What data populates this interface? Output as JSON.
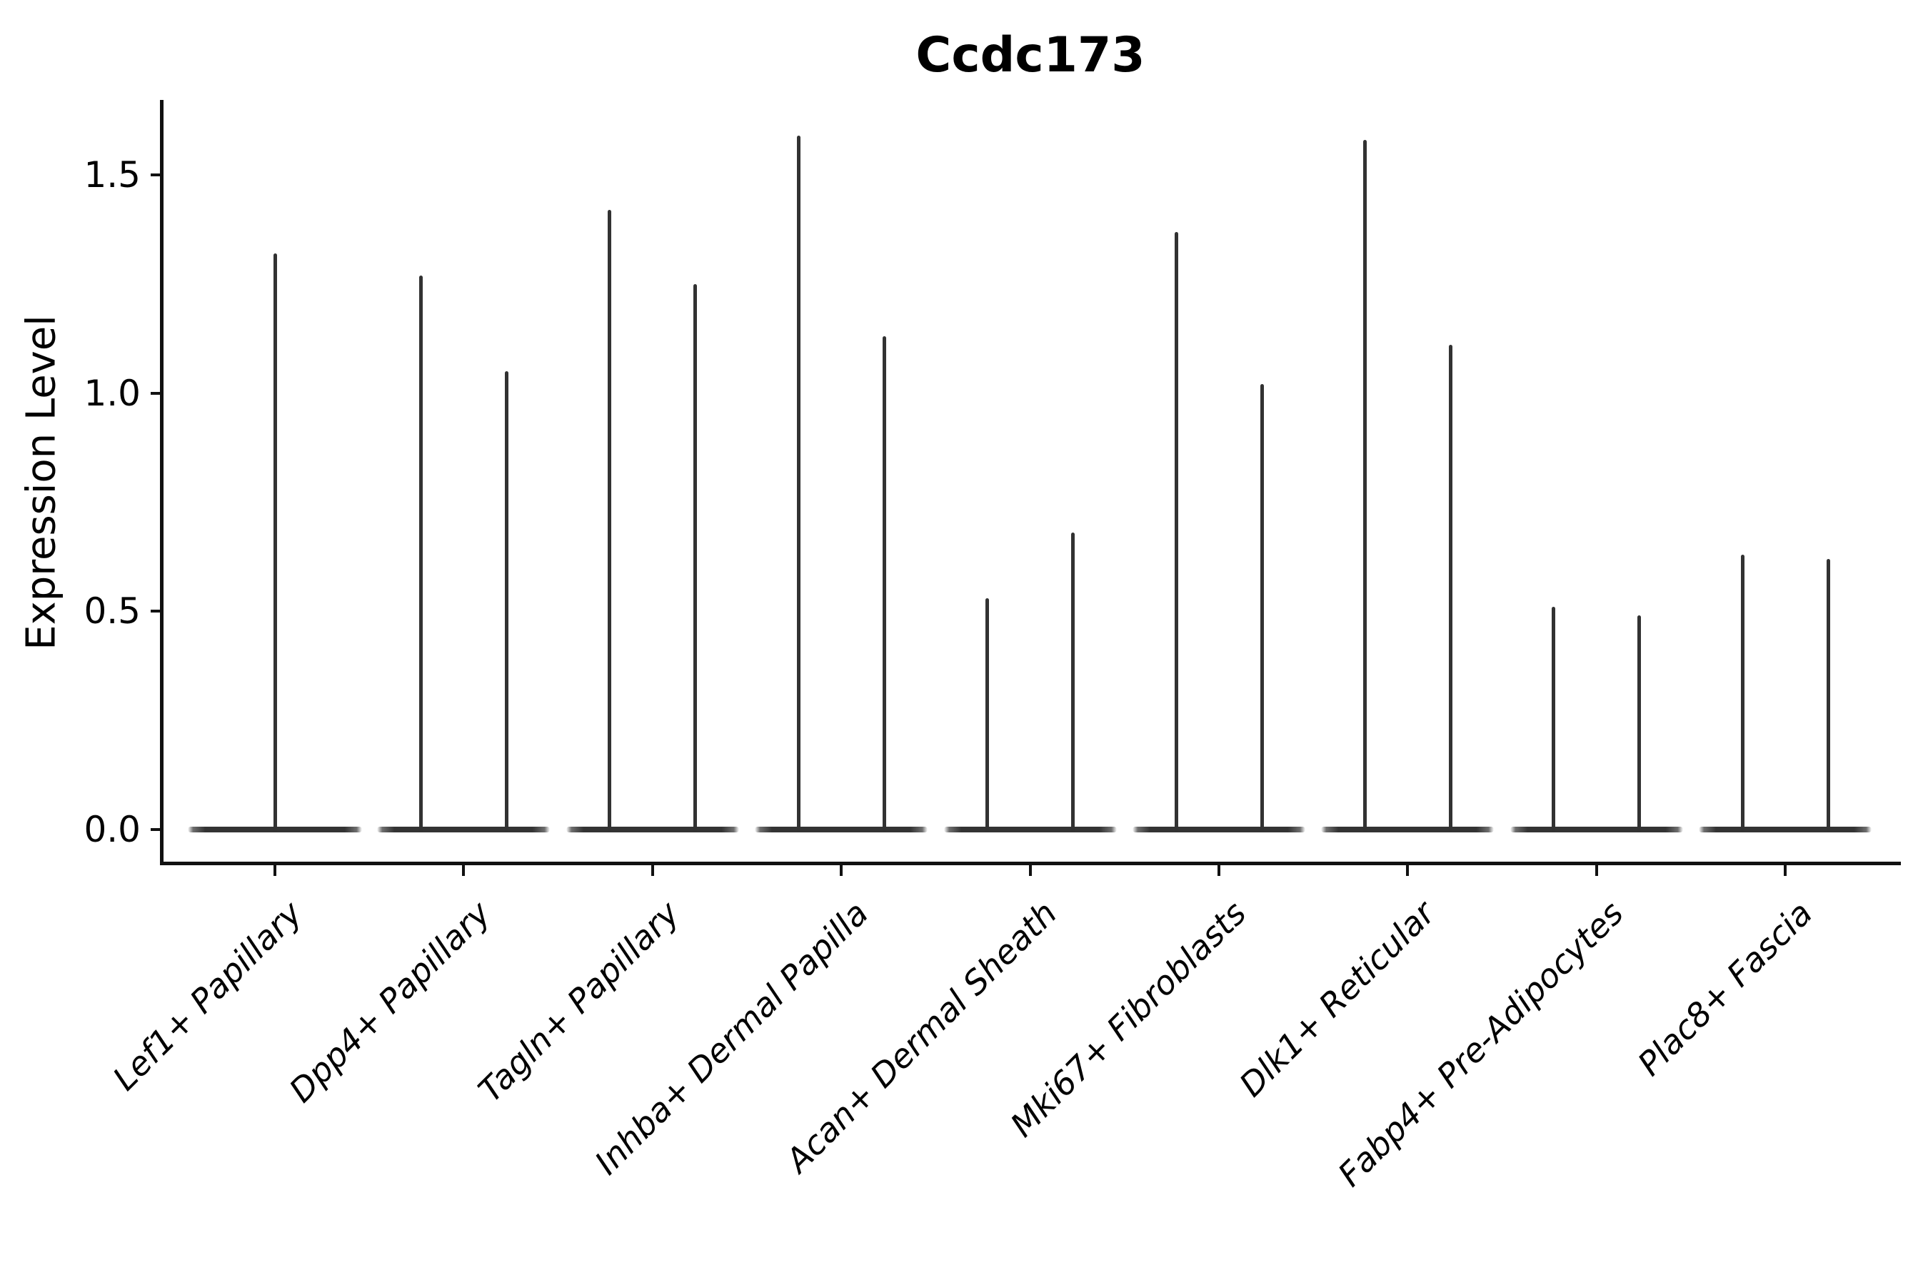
{
  "title": "Ccdc173",
  "y_axis": {
    "label": "Expression Level",
    "tick_labels": [
      "0.0",
      "0.5",
      "1.0",
      "1.5"
    ],
    "tick_values": [
      0.0,
      0.5,
      1.0,
      1.5
    ]
  },
  "chart_data": {
    "type": "violin",
    "title": "Ccdc173",
    "xlabel": "",
    "ylabel": "Expression Level",
    "ylim": [
      -0.08,
      1.68
    ],
    "yticks": [
      0.0,
      0.5,
      1.0,
      1.5
    ],
    "grid": false,
    "legend": "none",
    "description": "Single-cell expression violin plot; most cells at 0 so each violin renders as a flat base at y=0 with a thin density spike up to its maximum. First category holds one centered violin; all others hold two side-by-side violins.",
    "categories": [
      "Lef1+ Papillary",
      "Dpp4+ Papillary",
      "Tagln+ Papillary",
      "Inhba+ Dermal Papilla",
      "Acan+ Dermal Sheath",
      "Mki67+ Fibroblasts",
      "Dlk1+ Reticular",
      "Fabp4+ Pre-Adipocytes",
      "Plac8+ Fascia"
    ],
    "series": [
      {
        "category": "Lef1+ Papillary",
        "violin_max": [
          1.32
        ]
      },
      {
        "category": "Dpp4+ Papillary",
        "violin_max": [
          1.27,
          1.05
        ]
      },
      {
        "category": "Tagln+ Papillary",
        "violin_max": [
          1.42,
          1.25
        ]
      },
      {
        "category": "Inhba+ Dermal Papilla",
        "violin_max": [
          1.59,
          1.13
        ]
      },
      {
        "category": "Acan+ Dermal Sheath",
        "violin_max": [
          0.53,
          0.68
        ]
      },
      {
        "category": "Mki67+ Fibroblasts",
        "violin_max": [
          1.37,
          1.02
        ]
      },
      {
        "category": "Dlk1+ Reticular",
        "violin_max": [
          1.58,
          1.11
        ]
      },
      {
        "category": "Fabp4+ Pre-Adipocytes",
        "violin_max": [
          0.51,
          0.49
        ]
      },
      {
        "category": "Plac8+ Fascia",
        "violin_max": [
          0.63,
          0.62
        ]
      }
    ],
    "colors": {
      "violin_line": "#323232",
      "violin_base": "#333333",
      "axis": "#111111",
      "text": "#000000",
      "background": "#ffffff"
    }
  }
}
